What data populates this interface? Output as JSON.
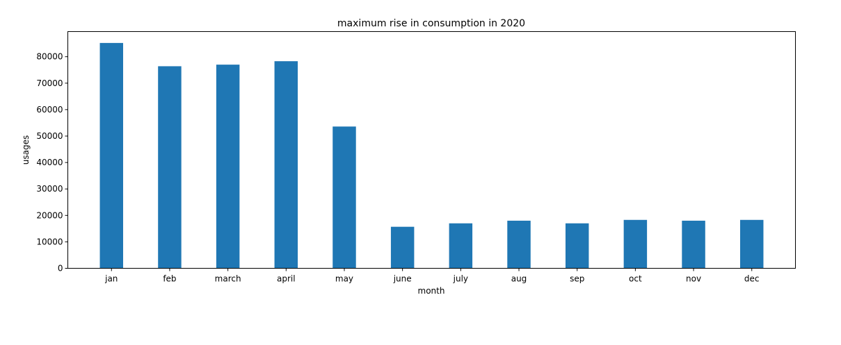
{
  "chart_data": {
    "type": "bar",
    "title": "maximum rise in consumption in 2020",
    "xlabel": "month",
    "ylabel": "usages",
    "categories": [
      "jan",
      "feb",
      "march",
      "april",
      "may",
      "june",
      "july",
      "aug",
      "sep",
      "oct",
      "nov",
      "dec"
    ],
    "values": [
      85200,
      76400,
      77000,
      78300,
      53600,
      15700,
      17000,
      18000,
      17000,
      18300,
      18000,
      18300
    ],
    "ylim": [
      0,
      89500
    ],
    "yticks": [
      0,
      10000,
      20000,
      30000,
      40000,
      50000,
      60000,
      70000,
      80000
    ],
    "ytick_labels": [
      "0",
      "10000",
      "20000",
      "30000",
      "40000",
      "50000",
      "60000",
      "70000",
      "80000"
    ],
    "grid": false,
    "bar_color": "#1f77b4"
  }
}
